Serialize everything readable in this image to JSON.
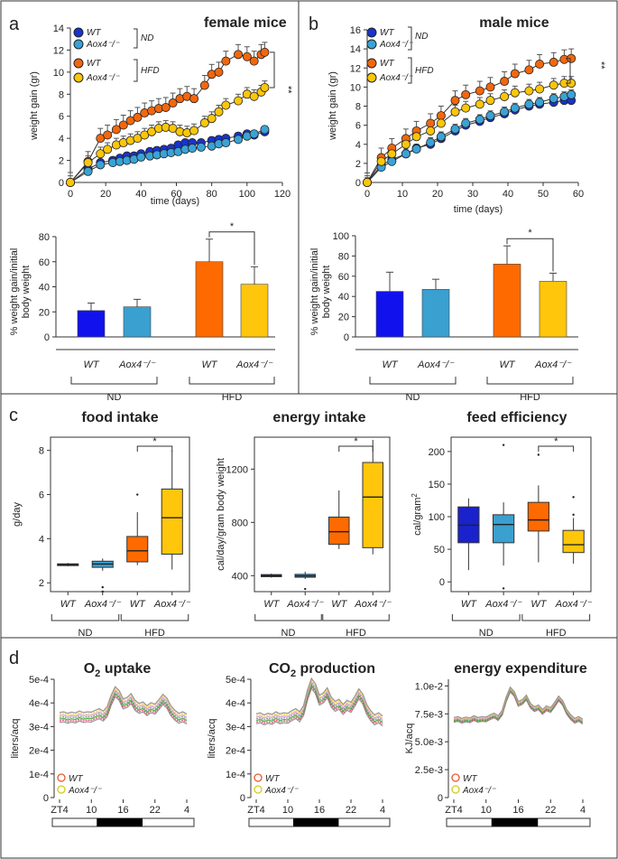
{
  "panels": {
    "a": {
      "letter": "a",
      "line": {
        "title": "female mice",
        "xlabel": "time (days)",
        "ylabel": "weight gain (gr)",
        "xlim": [
          0,
          120
        ],
        "ylim": [
          0,
          14
        ],
        "xticks": [
          0,
          20,
          40,
          60,
          80,
          100,
          120
        ],
        "yticks": [
          0,
          2,
          4,
          6,
          8,
          10,
          12,
          14
        ],
        "sig": "**",
        "series": [
          {
            "name": "WT ND",
            "color": "#1a33cc",
            "err": 0.3,
            "x": [
              0,
              10,
              17,
              24,
              28,
              32,
              36,
              40,
              45,
              49,
              53,
              57,
              61,
              65,
              69,
              74,
              80,
              84,
              88,
              95,
              100,
              104,
              110
            ],
            "y": [
              0,
              1.2,
              1.8,
              2.0,
              2.2,
              2.4,
              2.4,
              2.6,
              2.8,
              2.9,
              3.0,
              3.1,
              3.4,
              3.6,
              3.6,
              3.6,
              3.8,
              3.9,
              4.0,
              4.2,
              4.4,
              4.3,
              4.6
            ]
          },
          {
            "name": "Aox4-/- ND",
            "color": "#3aa3d6",
            "err": 0.3,
            "x": [
              0,
              10,
              17,
              24,
              28,
              32,
              36,
              40,
              45,
              49,
              53,
              57,
              61,
              65,
              69,
              74,
              80,
              84,
              88,
              95,
              100,
              104,
              110
            ],
            "y": [
              0,
              1.0,
              1.6,
              1.8,
              1.9,
              2.0,
              2.1,
              2.3,
              2.4,
              2.5,
              2.6,
              2.7,
              2.8,
              3.0,
              3.1,
              3.2,
              3.3,
              3.5,
              3.6,
              3.9,
              4.2,
              4.4,
              4.8
            ]
          },
          {
            "name": "WT HFD",
            "color": "#f2670e",
            "err": 0.9,
            "x": [
              0,
              10,
              17,
              21,
              26,
              30,
              34,
              38,
              42,
              46,
              50,
              54,
              58,
              62,
              66,
              70,
              76,
              80,
              84,
              88,
              95,
              100,
              104,
              108,
              110
            ],
            "y": [
              0,
              1.9,
              4.0,
              4.3,
              4.8,
              5.2,
              5.6,
              5.9,
              6.3,
              6.5,
              6.7,
              6.8,
              7.2,
              7.6,
              7.8,
              7.6,
              8.8,
              9.8,
              10.0,
              11.0,
              11.6,
              11.4,
              11.0,
              11.6,
              11.8
            ]
          },
          {
            "name": "Aox4-/- HFD",
            "color": "#fbc60a",
            "err": 0.6,
            "x": [
              0,
              10,
              17,
              21,
              26,
              30,
              34,
              38,
              42,
              46,
              50,
              54,
              58,
              62,
              66,
              70,
              76,
              80,
              84,
              88,
              95,
              100,
              104,
              108,
              110
            ],
            "y": [
              0,
              1.8,
              2.6,
              3.0,
              3.4,
              3.6,
              3.8,
              4.0,
              4.3,
              4.6,
              4.9,
              5.0,
              4.9,
              4.6,
              4.5,
              4.7,
              5.4,
              5.8,
              6.4,
              7.0,
              7.4,
              8.0,
              7.8,
              8.2,
              8.6
            ]
          }
        ]
      },
      "bar": {
        "ylabel_line1": "% weight gain/initial",
        "ylabel_line2": "body weight",
        "ylim": [
          0,
          80
        ],
        "yticks": [
          0,
          20,
          40,
          60,
          80
        ],
        "categories": [
          "WT",
          "Aox4⁻/⁻",
          "WT",
          "Aox4⁻/⁻"
        ],
        "values": [
          21,
          24,
          60,
          42
        ],
        "errors": [
          6,
          6,
          18,
          14
        ],
        "colors": [
          "#1111ee",
          "#3aa0d0",
          "#ff6a00",
          "#ffc60b"
        ],
        "groups": [
          "ND",
          "HFD"
        ],
        "sig": "*"
      }
    },
    "b": {
      "letter": "b",
      "line": {
        "title": "male mice",
        "xlabel": "time (days)",
        "ylabel": "weight gain (gr)",
        "xlim": [
          0,
          60
        ],
        "ylim": [
          0,
          16
        ],
        "xticks": [
          0,
          10,
          20,
          30,
          40,
          50,
          60
        ],
        "yticks": [
          0,
          2,
          4,
          6,
          8,
          10,
          12,
          14,
          16
        ],
        "sig": "**",
        "series": [
          {
            "name": "WT ND",
            "color": "#1a33cc",
            "err": 0.3,
            "x": [
              0,
              4,
              7,
              11,
              14,
              18,
              21,
              25,
              28,
              32,
              35,
              39,
              42,
              46,
              49,
              53,
              56,
              58
            ],
            "y": [
              0,
              1.8,
              2.4,
              3.0,
              3.6,
              4.0,
              4.6,
              5.4,
              6.0,
              6.4,
              6.8,
              7.2,
              7.6,
              8.0,
              8.2,
              8.4,
              8.6,
              8.6
            ]
          },
          {
            "name": "Aox4-/- ND",
            "color": "#3aa3d6",
            "err": 0.5,
            "x": [
              0,
              4,
              7,
              11,
              14,
              18,
              21,
              25,
              28,
              32,
              35,
              39,
              42,
              46,
              49,
              53,
              56,
              58
            ],
            "y": [
              0,
              1.6,
              2.2,
              3.0,
              3.5,
              4.2,
              4.8,
              5.6,
              6.2,
              6.6,
              7.0,
              7.4,
              7.8,
              8.2,
              8.4,
              8.8,
              9.0,
              9.2
            ]
          },
          {
            "name": "WT HFD",
            "color": "#f2670e",
            "err": 1.0,
            "x": [
              0,
              4,
              7,
              11,
              14,
              18,
              21,
              25,
              28,
              32,
              35,
              39,
              42,
              46,
              49,
              53,
              56,
              58
            ],
            "y": [
              0,
              2.6,
              3.6,
              4.6,
              5.4,
              6.2,
              7.0,
              8.6,
              9.2,
              9.6,
              10.0,
              10.6,
              11.4,
              11.8,
              12.4,
              12.6,
              12.9,
              13.0
            ]
          },
          {
            "name": "Aox4-/- HFD",
            "color": "#fbc60a",
            "err": 0.7,
            "x": [
              0,
              4,
              7,
              11,
              14,
              18,
              21,
              25,
              28,
              32,
              35,
              39,
              42,
              46,
              49,
              53,
              56,
              58
            ],
            "y": [
              0,
              2.2,
              3.0,
              4.0,
              4.8,
              5.4,
              6.2,
              7.4,
              7.8,
              8.2,
              8.6,
              9.0,
              9.4,
              9.6,
              9.8,
              10.2,
              10.4,
              10.4
            ]
          }
        ]
      },
      "bar": {
        "ylabel_line1": "% weight gain/initial",
        "ylabel_line2": "body weight",
        "ylim": [
          0,
          100
        ],
        "yticks": [
          0,
          20,
          40,
          60,
          80,
          100
        ],
        "categories": [
          "WT",
          "Aox4⁻/⁻",
          "WT",
          "Aox4⁻/⁻"
        ],
        "values": [
          45,
          47,
          72,
          55
        ],
        "errors": [
          19,
          10,
          18,
          8
        ],
        "colors": [
          "#1111ee",
          "#3aa0d0",
          "#ff6a00",
          "#ffc60b"
        ],
        "groups": [
          "ND",
          "HFD"
        ],
        "sig": "*"
      }
    },
    "c": {
      "letter": "c",
      "groups": [
        "ND",
        "HFD"
      ],
      "categories": [
        "WT",
        "Aox4⁻/⁻",
        "WT",
        "Aox4⁻/⁻"
      ],
      "colors": [
        "#1a22cc",
        "#3aa0d0",
        "#ff6a00",
        "#ffc60b"
      ],
      "boxes": [
        {
          "title": "food intake",
          "ylabel": "g/day",
          "ylim": [
            1.6,
            8.6
          ],
          "yticks": [
            2,
            4,
            6,
            8
          ],
          "sig": "*",
          "stats": [
            {
              "min": 2.75,
              "q1": 2.78,
              "med": 2.82,
              "q3": 2.86,
              "max": 2.9,
              "out": []
            },
            {
              "min": 2.55,
              "q1": 2.7,
              "med": 2.85,
              "q3": 2.98,
              "max": 3.1,
              "out": [
                1.8,
                1.6
              ]
            },
            {
              "min": 2.8,
              "q1": 2.95,
              "med": 3.45,
              "q3": 4.1,
              "max": 5.2,
              "out": [
                6.0
              ]
            },
            {
              "min": 2.6,
              "q1": 3.3,
              "med": 4.95,
              "q3": 6.25,
              "max": 8.0,
              "out": []
            }
          ]
        },
        {
          "title": "energy intake",
          "ylabel": "cal/day/gram body weight",
          "ylim": [
            280,
            1440
          ],
          "yticks": [
            400,
            800,
            1200
          ],
          "sig": "*",
          "stats": [
            {
              "min": 385,
              "q1": 392,
              "med": 400,
              "q3": 408,
              "max": 415,
              "out": []
            },
            {
              "min": 375,
              "q1": 388,
              "med": 398,
              "q3": 410,
              "max": 430,
              "out": [
                300
              ]
            },
            {
              "min": 600,
              "q1": 635,
              "med": 730,
              "q3": 840,
              "max": 1040,
              "out": []
            },
            {
              "min": 560,
              "q1": 610,
              "med": 990,
              "q3": 1250,
              "max": 1420,
              "out": []
            }
          ]
        },
        {
          "title": "feed efficiency",
          "ylabel": "cal/gram",
          "ylabel_sup": "2",
          "ylim": [
            -15,
            222
          ],
          "yticks": [
            0,
            50,
            100,
            150,
            200
          ],
          "sig": "*",
          "stats": [
            {
              "min": 18,
              "q1": 60,
              "med": 87,
              "q3": 115,
              "max": 128,
              "out": []
            },
            {
              "min": 25,
              "q1": 60,
              "med": 88,
              "q3": 103,
              "max": 122,
              "out": [
                210,
                -10
              ]
            },
            {
              "min": 30,
              "q1": 78,
              "med": 95,
              "q3": 122,
              "max": 148,
              "out": [
                195
              ]
            },
            {
              "min": 28,
              "q1": 45,
              "med": 57,
              "q3": 79,
              "max": 98,
              "out": [
                130,
                103
              ]
            }
          ]
        }
      ]
    },
    "d": {
      "letter": "d",
      "xticks": [
        "ZT4",
        "10",
        "16",
        "22",
        "4"
      ],
      "legend": [
        "WT",
        "Aox4⁻/⁻"
      ],
      "legend_colors": [
        "#e9572e",
        "#d6c91a"
      ],
      "profile": [
        0.24,
        0.26,
        0.22,
        0.25,
        0.23,
        0.28,
        0.24,
        0.26,
        0.25,
        0.3,
        0.34,
        0.28,
        0.4,
        0.7,
        0.92,
        0.82,
        0.6,
        0.64,
        0.74,
        0.56,
        0.48,
        0.52,
        0.42,
        0.5,
        0.46,
        0.58,
        0.72,
        0.62,
        0.42,
        0.3,
        0.22,
        0.26,
        0.2
      ],
      "plots": [
        {
          "title": "O",
          "title_sub": "2",
          "title_rest": " uptake",
          "ylabel": "liters/acq",
          "yticks": [
            "0",
            "1e-4",
            "2e-4",
            "3e-4",
            "4e-4",
            "5e-4"
          ],
          "ylim": [
            0,
            5.0
          ],
          "base": 3.0,
          "amp": 1.6
        },
        {
          "title": "CO",
          "title_sub": "2",
          "title_rest": " production",
          "ylabel": "liters/acq",
          "yticks": [
            "0",
            "1e-4",
            "2e-4",
            "3e-4",
            "4e-4",
            "5e-4"
          ],
          "ylim": [
            0,
            5.0
          ],
          "base": 2.8,
          "amp": 2.2
        },
        {
          "title": "energy expenditure",
          "title_sub": "",
          "title_rest": "",
          "ylabel": "KJ/acq",
          "yticks": [
            "0",
            "2.5e-3",
            "5.0e-3",
            "7.5e-3",
            "1.0e-2"
          ],
          "ylim": [
            0,
            10.6
          ],
          "base": 6.0,
          "amp": 4.0
        }
      ]
    }
  }
}
